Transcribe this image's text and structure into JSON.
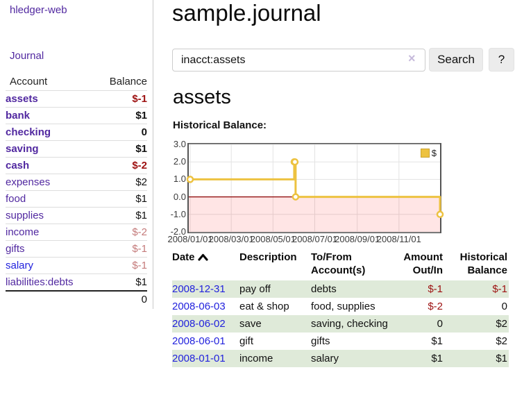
{
  "app": {
    "title": "hledger-web"
  },
  "nav": {
    "journal": "Journal"
  },
  "sidebar": {
    "header": {
      "account": "Account",
      "balance": "Balance"
    },
    "accounts": [
      {
        "name": "assets",
        "balance": "$-1"
      },
      {
        "name": "bank",
        "balance": "$1"
      },
      {
        "name": "checking",
        "balance": "0"
      },
      {
        "name": "saving",
        "balance": "$1"
      },
      {
        "name": "cash",
        "balance": "$-2"
      },
      {
        "name": "expenses",
        "balance": "$2"
      },
      {
        "name": "food",
        "balance": "$1"
      },
      {
        "name": "supplies",
        "balance": "$1"
      },
      {
        "name": "income",
        "balance": "$-2"
      },
      {
        "name": "gifts",
        "balance": "$-1"
      },
      {
        "name": "salary",
        "balance": "$-1"
      },
      {
        "name": "liabilities:debts",
        "balance": "$1"
      }
    ],
    "total": "0"
  },
  "main": {
    "title": "sample.journal",
    "search": {
      "value": "inacct:assets",
      "clear": "×",
      "button": "Search",
      "help": "?"
    },
    "account_heading": "assets",
    "chart_label": "Historical Balance:"
  },
  "chart_data": {
    "type": "line",
    "step": true,
    "title": "Historical Balance",
    "series": [
      {
        "name": "$",
        "color": "#edc240",
        "points": [
          [
            "2008-01-01",
            1
          ],
          [
            "2008-06-01",
            2
          ],
          [
            "2008-06-02",
            2
          ],
          [
            "2008-06-03",
            0
          ],
          [
            "2008-12-31",
            -1
          ]
        ]
      }
    ],
    "ylim": [
      -2,
      3
    ],
    "yticks": [
      3,
      2,
      1,
      0,
      -1,
      -2
    ],
    "ytick_labels": [
      "3.0",
      "2.0",
      "1.0",
      "0.0",
      "-1.0",
      "-2.0"
    ],
    "xticks": [
      "2008/01/01",
      "2008/03/01",
      "2008/05/01",
      "2008/07/01",
      "2008/09/01",
      "2008/11/01"
    ],
    "x_start": "2008-01-01",
    "x_span_days": 365,
    "grid": true,
    "negative_fill": "rgba(255,0,0,0.10)",
    "zero_line_color": "#8b0000",
    "legend": {
      "label": "$",
      "position": "top-right"
    }
  },
  "register": {
    "headers": {
      "date": "Date",
      "description": "Description",
      "tofrom": "To/From Account(s)",
      "amount": "Amount Out/In",
      "balance": "Historical Balance"
    },
    "rows": [
      {
        "date": "2008-12-31",
        "description": "pay off",
        "accounts": "debts",
        "amount": "$-1",
        "balance": "$-1"
      },
      {
        "date": "2008-06-03",
        "description": "eat & shop",
        "accounts": "food, supplies",
        "amount": "$-2",
        "balance": "0"
      },
      {
        "date": "2008-06-02",
        "description": "save",
        "accounts": "saving, checking",
        "amount": "0",
        "balance": "$2"
      },
      {
        "date": "2008-06-01",
        "description": "gift",
        "accounts": "gifts",
        "amount": "$1",
        "balance": "$2"
      },
      {
        "date": "2008-01-01",
        "description": "income",
        "accounts": "salary",
        "amount": "$1",
        "balance": "$1"
      }
    ]
  }
}
